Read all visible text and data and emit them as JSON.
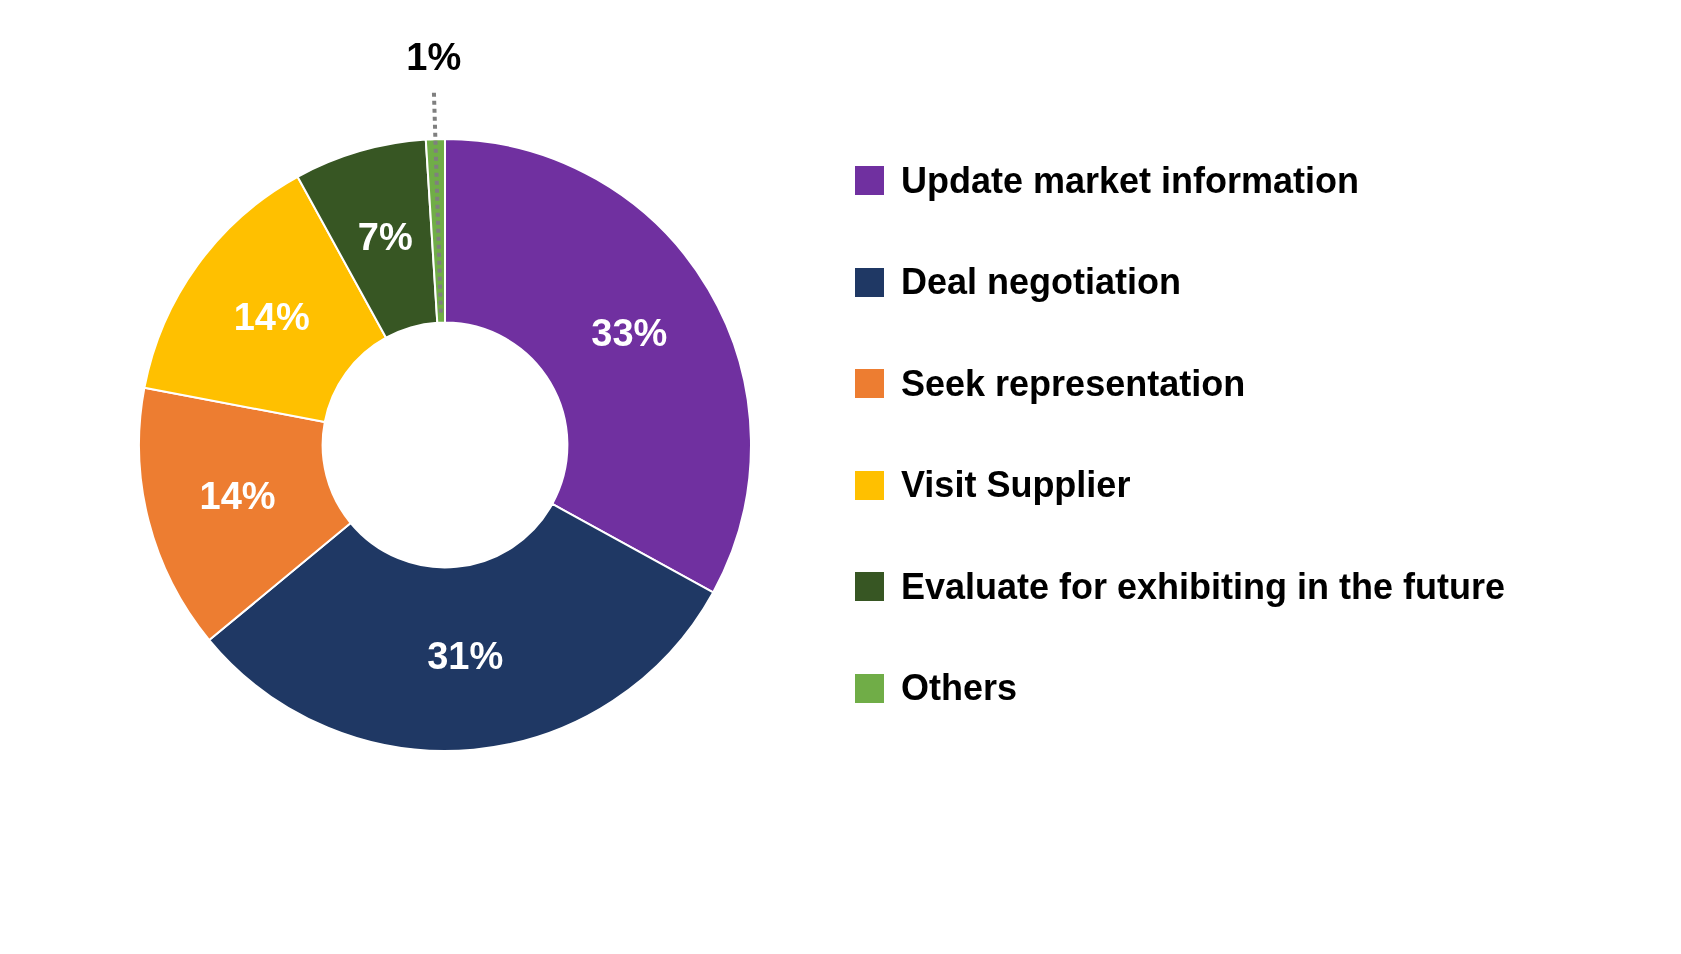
{
  "chart_data": {
    "type": "donut",
    "categories": [
      "Update market information",
      "Deal negotiation",
      "Seek representation",
      "Visit Supplier",
      "Evaluate for exhibiting in the future",
      "Others"
    ],
    "values": [
      33,
      31,
      14,
      14,
      7,
      1
    ],
    "value_labels": [
      "33%",
      "31%",
      "14%",
      "14%",
      "7%",
      "1%"
    ],
    "colors": [
      "#7030a0",
      "#1f3864",
      "#ed7d31",
      "#ffc000",
      "#375623",
      "#70ad47"
    ],
    "legend": "right"
  }
}
